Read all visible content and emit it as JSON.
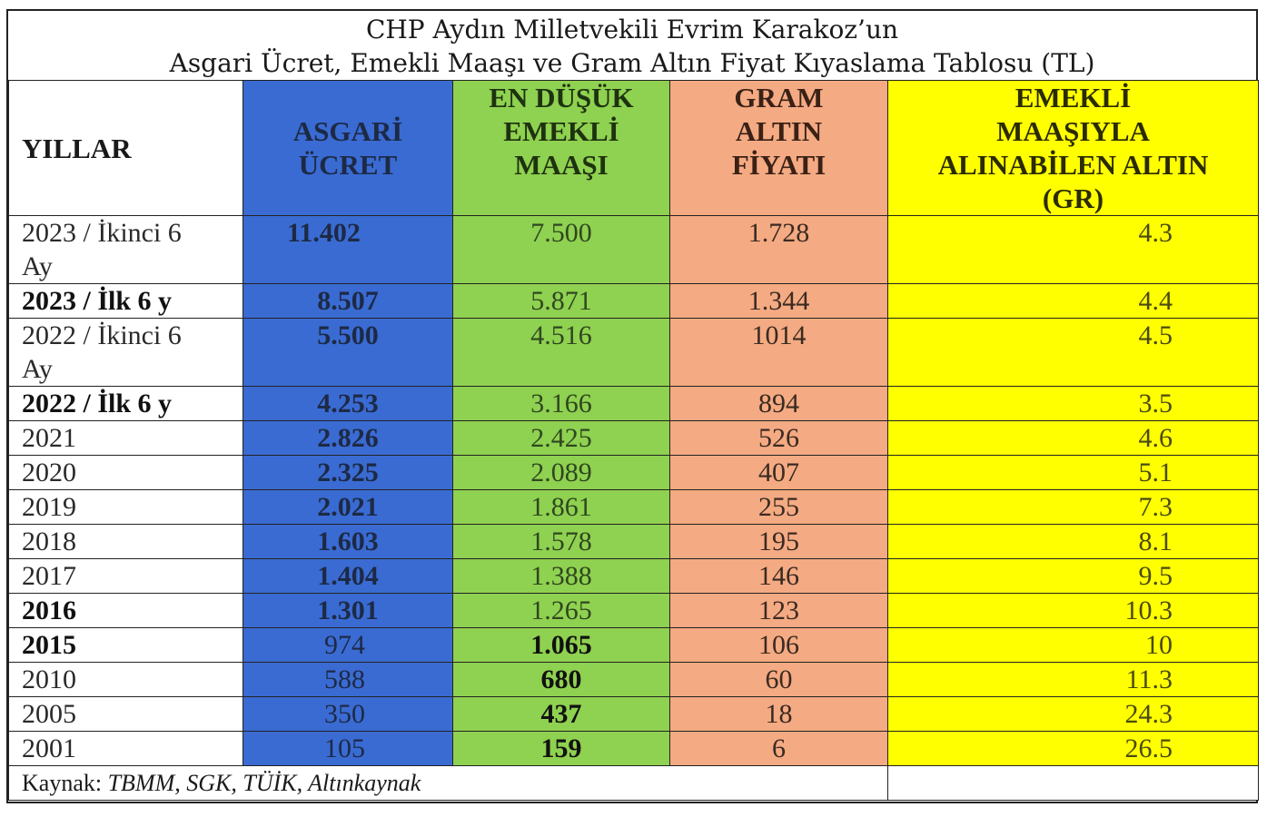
{
  "title": {
    "line1": "CHP Aydın Milletvekili Evrim Karakoz’un",
    "line2": "Asgari Ücret, Emekli Maaşı ve Gram Altın Fiyat Kıyaslama Tablosu (TL)"
  },
  "headers": {
    "years": "YILLAR",
    "min_wage": [
      "ASGARİ",
      "ÜCRET"
    ],
    "min_pension": [
      "EN DÜŞÜK",
      "EMEKLİ",
      "MAAŞI"
    ],
    "gold_price": [
      "GRAM",
      "ALTIN",
      "FİYATI"
    ],
    "gold_buyable": [
      "EMEKLİ",
      "MAAŞIYLA",
      "ALINABİLEN ALTIN",
      "(GR)"
    ]
  },
  "rows": [
    {
      "year": [
        "2023 / İkinci 6",
        "Ay"
      ],
      "wage": "11.402",
      "pension": "7.500",
      "gold": "1.728",
      "grams": "4.3"
    },
    {
      "year": [
        "2023 / İlk 6 y"
      ],
      "wage": "8.507",
      "pension": "5.871",
      "gold": "1.344",
      "grams": "4.4"
    },
    {
      "year": [
        "2022 / İkinci 6",
        "Ay"
      ],
      "wage": "5.500",
      "pension": "4.516",
      "gold": "1014",
      "grams": "4.5"
    },
    {
      "year": [
        "2022 / İlk 6 y"
      ],
      "wage": "4.253",
      "pension": "3.166",
      "gold": "894",
      "grams": "3.5"
    },
    {
      "year": [
        "2021"
      ],
      "wage": "2.826",
      "pension": "2.425",
      "gold": "526",
      "grams": "4.6"
    },
    {
      "year": [
        "2020"
      ],
      "wage": "2.325",
      "pension": "2.089",
      "gold": "407",
      "grams": "5.1"
    },
    {
      "year": [
        "2019"
      ],
      "wage": "2.021",
      "pension": "1.861",
      "gold": "255",
      "grams": "7.3"
    },
    {
      "year": [
        "2018"
      ],
      "wage": "1.603",
      "pension": "1.578",
      "gold": "195",
      "grams": "8.1"
    },
    {
      "year": [
        "2017"
      ],
      "wage": "1.404",
      "pension": "1.388",
      "gold": "146",
      "grams": "9.5"
    },
    {
      "year": [
        "2016"
      ],
      "wage": "1.301",
      "pension": "1.265",
      "gold": "123",
      "grams": "10.3"
    },
    {
      "year": [
        "2015"
      ],
      "wage": "974",
      "pension": "1.065",
      "gold": "106",
      "grams": "10"
    },
    {
      "year": [
        "2010"
      ],
      "wage": "588",
      "pension": "680",
      "gold": "60",
      "grams": "11.3"
    },
    {
      "year": [
        "2005"
      ],
      "wage": "350",
      "pension": "437",
      "gold": "18",
      "grams": "24.3"
    },
    {
      "year": [
        "2001"
      ],
      "wage": "105",
      "pension": "159",
      "gold": "6",
      "grams": "26.5"
    }
  ],
  "source": {
    "label": "Kaynak:",
    "text": "TBMM, SGK, TÜİK, Altınkaynak"
  }
}
